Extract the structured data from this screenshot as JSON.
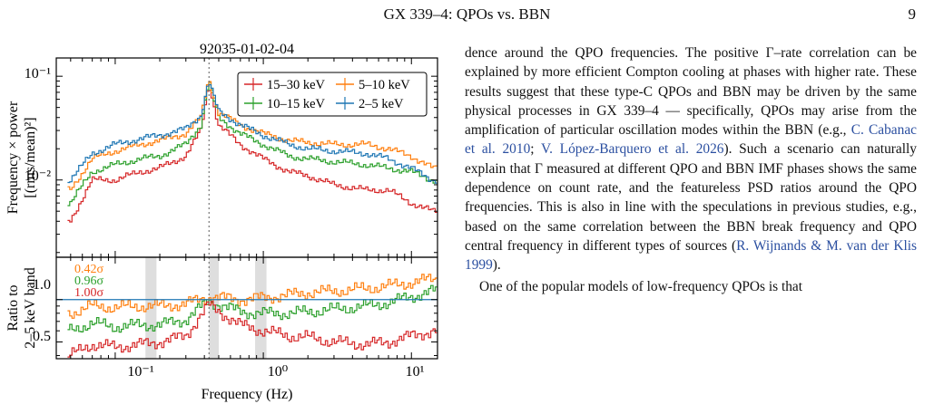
{
  "header": {
    "title": "GX 339–4: QPOs vs. BBN",
    "page_number": "9"
  },
  "figure": {
    "obs_id": "92035-01-02-04",
    "top_ylabel_line1": "Frequency × power",
    "top_ylabel_line2": "[(rms/mean)²]",
    "bottom_ylabel_line1": "Ratio to",
    "bottom_ylabel_line2": "2–5 keV band",
    "xlabel": "Frequency (Hz)",
    "legend": [
      {
        "label": "15–30 keV",
        "color": "#d62728"
      },
      {
        "label": "5–10 keV",
        "color": "#ff7f0e"
      },
      {
        "label": "10–15 keV",
        "color": "#2ca02c"
      },
      {
        "label": "2–5 keV",
        "color": "#1f77b4"
      }
    ],
    "sigma_labels": [
      {
        "text": "0.42σ",
        "color": "#ff7f0e"
      },
      {
        "text": "0.96σ",
        "color": "#2ca02c"
      },
      {
        "text": "1.00σ",
        "color": "#d62728"
      }
    ],
    "top_yticks": [
      "10⁻¹",
      "10⁻²"
    ],
    "bottom_yticks": [
      "1.0",
      "0.5"
    ],
    "xticks": [
      "10⁻¹",
      "10⁰",
      "10¹"
    ]
  },
  "chart_data": {
    "type": "line",
    "x_scale": "log",
    "xlim": [
      0.04,
      15
    ],
    "top_panel": {
      "y_scale": "log",
      "ylim": [
        0.0018,
        0.15
      ],
      "qpo_frequency": 0.43,
      "series": [
        {
          "name": "15–30 keV",
          "x": [
            0.05,
            0.07,
            0.1,
            0.15,
            0.2,
            0.3,
            0.38,
            0.43,
            0.5,
            0.7,
            1,
            1.5,
            2,
            3,
            5,
            7,
            10,
            14
          ],
          "y": [
            0.004,
            0.01,
            0.01,
            0.012,
            0.013,
            0.017,
            0.03,
            0.085,
            0.034,
            0.022,
            0.016,
            0.012,
            0.011,
            0.009,
            0.008,
            0.008,
            0.006,
            0.005
          ]
        },
        {
          "name": "10–15 keV",
          "x": [
            0.05,
            0.07,
            0.1,
            0.15,
            0.2,
            0.3,
            0.38,
            0.43,
            0.5,
            0.7,
            1,
            1.5,
            2,
            3,
            5,
            7,
            10,
            14
          ],
          "y": [
            0.006,
            0.012,
            0.014,
            0.016,
            0.017,
            0.022,
            0.034,
            0.09,
            0.04,
            0.028,
            0.022,
            0.017,
            0.016,
            0.015,
            0.014,
            0.013,
            0.012,
            0.01
          ]
        },
        {
          "name": "5–10 keV",
          "x": [
            0.05,
            0.07,
            0.1,
            0.15,
            0.2,
            0.3,
            0.38,
            0.43,
            0.5,
            0.7,
            1,
            1.5,
            2,
            3,
            5,
            7,
            10,
            14
          ],
          "y": [
            0.008,
            0.016,
            0.019,
            0.022,
            0.024,
            0.028,
            0.04,
            0.095,
            0.045,
            0.034,
            0.028,
            0.024,
            0.023,
            0.022,
            0.022,
            0.02,
            0.017,
            0.013
          ]
        },
        {
          "name": "2–5 keV",
          "x": [
            0.05,
            0.07,
            0.1,
            0.15,
            0.2,
            0.3,
            0.38,
            0.43,
            0.5,
            0.7,
            1,
            1.5,
            2,
            3,
            5,
            7,
            10,
            14
          ],
          "y": [
            0.01,
            0.018,
            0.022,
            0.025,
            0.027,
            0.031,
            0.042,
            0.09,
            0.046,
            0.034,
            0.027,
            0.022,
            0.02,
            0.019,
            0.018,
            0.016,
            0.013,
            0.01
          ]
        }
      ]
    },
    "bottom_panel": {
      "y_scale": "log",
      "ylim": [
        0.38,
        2.0
      ],
      "reference_line": 1.0,
      "shaded_bands": [
        [
          0.16,
          0.19
        ],
        [
          0.43,
          0.5
        ],
        [
          0.88,
          1.05
        ]
      ],
      "series": [
        {
          "name": "5–10 keV",
          "x": [
            0.05,
            0.07,
            0.1,
            0.15,
            0.2,
            0.3,
            0.43,
            0.7,
            1,
            1.5,
            2,
            3,
            5,
            7,
            10,
            14
          ],
          "y": [
            0.8,
            0.9,
            0.88,
            0.9,
            0.9,
            0.93,
            1.05,
            1.0,
            1.03,
            1.08,
            1.12,
            1.15,
            1.2,
            1.25,
            1.32,
            1.4
          ]
        },
        {
          "name": "10–15 keV",
          "x": [
            0.05,
            0.07,
            0.1,
            0.15,
            0.2,
            0.3,
            0.43,
            0.7,
            1,
            1.5,
            2,
            3,
            5,
            7,
            10,
            14
          ],
          "y": [
            0.6,
            0.68,
            0.64,
            0.66,
            0.66,
            0.72,
            0.98,
            0.82,
            0.8,
            0.8,
            0.82,
            0.85,
            0.9,
            0.95,
            1.05,
            1.15
          ]
        },
        {
          "name": "15–30 keV",
          "x": [
            0.05,
            0.07,
            0.1,
            0.15,
            0.2,
            0.3,
            0.43,
            0.7,
            1,
            1.5,
            2,
            3,
            5,
            7,
            10,
            14
          ],
          "y": [
            0.4,
            0.48,
            0.46,
            0.48,
            0.5,
            0.55,
            0.92,
            0.66,
            0.6,
            0.55,
            0.54,
            0.5,
            0.48,
            0.5,
            0.55,
            0.6
          ]
        }
      ]
    }
  },
  "text": {
    "p1_before_cite1": "dence around the QPO frequencies. The positive Γ–rate correlation can be explained by more efficient Compton cooling at phases with higher rate. These results suggest that these type-C QPOs and BBN may be driven by the same physical processes in GX 339–4 — specifically, QPOs may arise from the amplification of particular oscillation modes within the BBN (e.g., ",
    "cite1": "C. Cabanac et al. 2010",
    "sep1": "; ",
    "cite2": "V. López-Barquero et al. 2026",
    "p1_after_cite2": "). Such a scenario can naturally explain that Γ measured at different QPO and BBN IMF phases shows the same dependence on count rate, and the featureless PSD ratios around the QPO frequencies. This is also in line with the speculations in previous studies, e.g., based on the same correlation between the BBN break frequency and QPO central frequency in different types of sources (",
    "cite3": "R. Wijnands & M. van der Klis 1999",
    "p1_end": ").",
    "p2": "One of the popular models of low-frequency QPOs is that"
  }
}
